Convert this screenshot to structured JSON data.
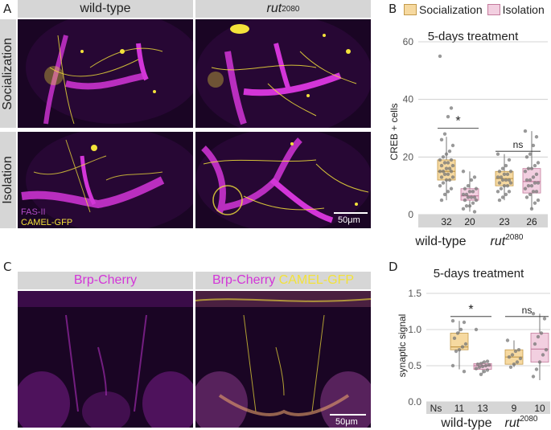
{
  "panel_labels": {
    "a": "A",
    "b": "B",
    "c": "C",
    "d": "D"
  },
  "panel_a": {
    "col_headers": [
      "wild-type",
      "rut"
    ],
    "rut_superscript": "2080",
    "row_headers": [
      "Socialization",
      "Isolation"
    ],
    "stain_labels": {
      "fas": "FAS-II",
      "camel": "CAMEL-GFP"
    },
    "scale_bar": "50μm"
  },
  "panel_c": {
    "headers": {
      "left": "Brp-Cherry",
      "right_a": "Brp-Cherry",
      "right_b": "CAMEL-GFP"
    },
    "scale_bar": "50μm"
  },
  "legend": {
    "socialization": "Socialization",
    "isolation": "Isolation"
  },
  "colors": {
    "socialization": "#f6d9a0",
    "isolation": "#f2cfe0",
    "socialization_edge": "#c49a4a",
    "isolation_edge": "#c47a9c",
    "magenta": "#d335d8",
    "yellow": "#f3e23a"
  },
  "chart_data": [
    {
      "type": "box",
      "title": "5-days treatment",
      "ylabel": "CREB + cells",
      "ylim": [
        0,
        60
      ],
      "yticks": [
        0,
        20,
        40,
        60
      ],
      "grid": true,
      "groups": [
        "wild-type",
        "rut"
      ],
      "group_superscript": [
        "",
        "2080"
      ],
      "series": [
        {
          "group": "wild-type",
          "condition": "Socialization",
          "n": "32",
          "q1": 12,
          "median": 15,
          "q3": 19,
          "whisker_low": 5,
          "whisker_high": 27,
          "points": [
            55,
            37,
            34,
            28,
            26,
            24,
            22,
            21,
            20,
            19,
            19,
            18,
            18,
            17,
            17,
            16,
            16,
            15,
            15,
            15,
            14,
            14,
            13,
            13,
            12,
            12,
            11,
            10,
            9,
            8,
            7,
            5
          ]
        },
        {
          "group": "wild-type",
          "condition": "Isolation",
          "n": "20",
          "q1": 5,
          "median": 6.5,
          "q3": 9,
          "whisker_low": 1,
          "whisker_high": 15,
          "points": [
            15,
            13,
            12,
            10,
            9,
            9,
            8,
            8,
            7,
            7,
            6,
            6,
            6,
            5,
            5,
            4,
            3,
            3,
            2,
            1
          ]
        },
        {
          "group": "rut",
          "condition": "Socialization",
          "n": "23",
          "q1": 10,
          "median": 12.5,
          "q3": 15,
          "whisker_low": 5,
          "whisker_high": 21,
          "points": [
            21,
            19,
            17,
            16,
            15,
            15,
            14,
            14,
            13,
            13,
            12,
            12,
            12,
            11,
            11,
            10,
            10,
            9,
            8,
            8,
            7,
            6,
            5
          ]
        },
        {
          "group": "rut",
          "condition": "Isolation",
          "n": "26",
          "q1": 7.5,
          "median": 11.5,
          "q3": 16,
          "whisker_low": 2,
          "whisker_high": 29,
          "points": [
            29,
            27,
            24,
            21,
            20,
            18,
            17,
            16,
            16,
            15,
            14,
            13,
            12,
            12,
            11,
            11,
            10,
            10,
            9,
            8,
            8,
            7,
            6,
            5,
            4,
            2
          ]
        }
      ],
      "significance": [
        {
          "group": "wild-type",
          "label": "*"
        },
        {
          "group": "rut",
          "label": "ns"
        }
      ]
    },
    {
      "type": "box",
      "title": "5-days treatment",
      "ylabel": "synaptic signal",
      "ylim": [
        0,
        1.5
      ],
      "yticks": [
        "0.0",
        "0.5",
        "1.0",
        "1.5"
      ],
      "grid": true,
      "groups": [
        "wild-type",
        "rut"
      ],
      "group_superscript": [
        "",
        "2080"
      ],
      "count_prefix": "Ns",
      "series": [
        {
          "group": "wild-type",
          "condition": "Socialization",
          "n": "11",
          "q1": 0.72,
          "median": 0.76,
          "q3": 0.95,
          "whisker_low": 0.45,
          "whisker_high": 1.12,
          "points": [
            1.12,
            1.1,
            1.0,
            0.95,
            0.88,
            0.8,
            0.76,
            0.72,
            0.7,
            0.5,
            0.42
          ]
        },
        {
          "group": "wild-type",
          "condition": "Isolation",
          "n": "13",
          "q1": 0.45,
          "median": 0.5,
          "q3": 0.53,
          "whisker_low": 0.39,
          "whisker_high": 0.56,
          "points": [
            1.0,
            0.56,
            0.55,
            0.53,
            0.52,
            0.51,
            0.5,
            0.49,
            0.48,
            0.46,
            0.44,
            0.42,
            0.38
          ]
        },
        {
          "group": "rut",
          "condition": "Socialization",
          "n": "9",
          "q1": 0.52,
          "median": 0.62,
          "q3": 0.72,
          "whisker_low": 0.48,
          "whisker_high": 0.85,
          "points": [
            0.85,
            0.72,
            0.7,
            0.65,
            0.62,
            0.6,
            0.55,
            0.52,
            0.48
          ]
        },
        {
          "group": "rut",
          "condition": "Isolation",
          "n": "10",
          "q1": 0.55,
          "median": 0.73,
          "q3": 0.95,
          "whisker_low": 0.3,
          "whisker_high": 1.22,
          "points": [
            1.22,
            1.15,
            0.95,
            0.9,
            0.8,
            0.72,
            0.65,
            0.55,
            0.45,
            0.35
          ]
        }
      ],
      "significance": [
        {
          "group": "wild-type",
          "label": "*"
        },
        {
          "group": "rut",
          "label": "ns"
        }
      ]
    }
  ]
}
